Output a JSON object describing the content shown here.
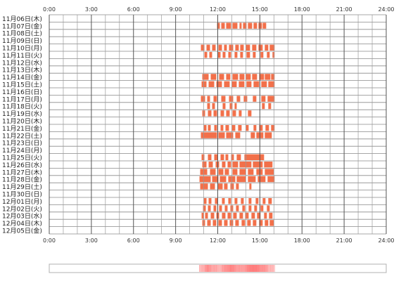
{
  "chart_data": {
    "type": "timeline",
    "x_ticks": [
      "0:00",
      "3:00",
      "6:00",
      "9:00",
      "12:00",
      "15:00",
      "18:00",
      "21:00",
      "24:00"
    ],
    "x_range_hours": [
      0,
      24
    ],
    "bar_color": "#f2704a",
    "rows": [
      {
        "label": "11月06日(木)",
        "segments": []
      },
      {
        "label": "11月07日(金)",
        "segments": [
          [
            11.95,
            12.15
          ],
          [
            12.25,
            12.5
          ],
          [
            12.6,
            12.95
          ],
          [
            13.05,
            13.4
          ],
          [
            13.55,
            13.7
          ],
          [
            13.8,
            14.05
          ],
          [
            14.15,
            14.45
          ],
          [
            14.55,
            14.8
          ],
          [
            14.9,
            15.15
          ],
          [
            15.2,
            15.45
          ]
        ]
      },
      {
        "label": "11月08日(土)",
        "segments": []
      },
      {
        "label": "11月09日(日)",
        "segments": []
      },
      {
        "label": "11月10日(月)",
        "segments": [
          [
            10.8,
            11.05
          ],
          [
            11.2,
            11.45
          ],
          [
            11.6,
            11.85
          ],
          [
            12.05,
            12.3
          ],
          [
            12.45,
            12.65
          ],
          [
            12.8,
            13.1
          ],
          [
            13.25,
            13.5
          ],
          [
            13.6,
            13.85
          ],
          [
            14.0,
            14.3
          ],
          [
            14.45,
            14.75
          ],
          [
            14.9,
            15.2
          ],
          [
            15.35,
            15.6
          ],
          [
            15.7,
            16.05
          ]
        ]
      },
      {
        "label": "11月11日(火)",
        "segments": [
          [
            11.05,
            11.25
          ],
          [
            11.4,
            11.6
          ],
          [
            12.0,
            12.2
          ],
          [
            12.35,
            12.55
          ],
          [
            12.75,
            12.95
          ],
          [
            13.2,
            13.4
          ],
          [
            13.6,
            13.8
          ],
          [
            14.05,
            14.3
          ],
          [
            14.5,
            14.7
          ],
          [
            15.05,
            15.25
          ],
          [
            15.5,
            15.7
          ],
          [
            15.9,
            16.05
          ]
        ]
      },
      {
        "label": "11月12日(水)",
        "segments": []
      },
      {
        "label": "11月13日(木)",
        "segments": []
      },
      {
        "label": "11月14日(金)",
        "segments": [
          [
            10.9,
            11.35
          ],
          [
            11.5,
            11.9
          ],
          [
            12.1,
            12.45
          ],
          [
            12.6,
            12.9
          ],
          [
            13.05,
            13.45
          ],
          [
            13.55,
            13.9
          ],
          [
            14.0,
            14.35
          ],
          [
            14.45,
            14.8
          ],
          [
            14.95,
            15.3
          ],
          [
            15.35,
            15.75
          ],
          [
            15.8,
            16.05
          ]
        ]
      },
      {
        "label": "11月15日(土)",
        "segments": [
          [
            10.85,
            11.2
          ],
          [
            11.35,
            11.75
          ],
          [
            11.9,
            12.3
          ],
          [
            12.45,
            12.85
          ],
          [
            13.0,
            13.35
          ],
          [
            13.5,
            13.9
          ],
          [
            14.05,
            14.4
          ],
          [
            14.55,
            14.95
          ],
          [
            15.1,
            15.5
          ],
          [
            15.6,
            16.05
          ]
        ]
      },
      {
        "label": "11月16日(日)",
        "segments": []
      },
      {
        "label": "11月17日(月)",
        "segments": [
          [
            10.8,
            11.1
          ],
          [
            11.25,
            11.45
          ],
          [
            11.7,
            11.95
          ],
          [
            12.25,
            12.55
          ],
          [
            12.8,
            13.1
          ],
          [
            13.35,
            13.6
          ],
          [
            13.85,
            14.1
          ],
          [
            14.5,
            14.75
          ],
          [
            15.1,
            15.4
          ],
          [
            15.55,
            16.05
          ]
        ]
      },
      {
        "label": "11月18日(火)",
        "segments": [
          [
            11.25,
            11.45
          ],
          [
            11.6,
            11.8
          ],
          [
            12.35,
            12.55
          ],
          [
            12.85,
            13.05
          ],
          [
            13.2,
            13.35
          ],
          [
            15.15,
            15.35
          ],
          [
            15.6,
            15.8
          ]
        ]
      },
      {
        "label": "11月19日(水)",
        "segments": [
          [
            10.9,
            11.1
          ],
          [
            11.3,
            11.55
          ],
          [
            11.7,
            11.95
          ],
          [
            12.2,
            12.45
          ],
          [
            12.6,
            12.85
          ],
          [
            13.05,
            13.3
          ],
          [
            13.5,
            13.7
          ],
          [
            14.15,
            14.4
          ]
        ]
      },
      {
        "label": "11月20日(木)",
        "segments": []
      },
      {
        "label": "11月21日(金)",
        "segments": [
          [
            11.0,
            11.2
          ],
          [
            11.3,
            11.5
          ],
          [
            11.75,
            11.95
          ],
          [
            12.2,
            12.4
          ],
          [
            12.55,
            12.8
          ],
          [
            13.0,
            13.25
          ],
          [
            13.45,
            13.7
          ],
          [
            14.0,
            14.2
          ],
          [
            14.55,
            14.75
          ],
          [
            14.95,
            15.2
          ],
          [
            15.4,
            15.65
          ],
          [
            15.8,
            16.05
          ]
        ]
      },
      {
        "label": "11月22日(土)",
        "segments": [
          [
            10.8,
            11.95
          ],
          [
            12.05,
            12.5
          ],
          [
            12.6,
            13.1
          ],
          [
            13.25,
            13.6
          ],
          [
            14.35,
            14.65
          ],
          [
            14.75,
            15.25
          ],
          [
            15.35,
            15.85
          ]
        ]
      },
      {
        "label": "11月23日(日)",
        "segments": []
      },
      {
        "label": "11月24日(月)",
        "segments": []
      },
      {
        "label": "11月25日(火)",
        "segments": [
          [
            10.85,
            11.05
          ],
          [
            11.3,
            11.55
          ],
          [
            11.75,
            12.0
          ],
          [
            12.2,
            12.45
          ],
          [
            12.55,
            12.75
          ],
          [
            12.95,
            13.15
          ],
          [
            13.35,
            13.65
          ],
          [
            13.9,
            15.3
          ]
        ]
      },
      {
        "label": "11月26日(水)",
        "segments": [
          [
            10.9,
            11.2
          ],
          [
            11.35,
            11.65
          ],
          [
            11.85,
            12.1
          ],
          [
            12.3,
            12.55
          ],
          [
            12.7,
            12.95
          ],
          [
            13.05,
            13.45
          ],
          [
            13.55,
            14.4
          ],
          [
            14.5,
            15.2
          ],
          [
            15.3,
            15.9
          ]
        ]
      },
      {
        "label": "11月27日(木)",
        "segments": [
          [
            10.75,
            11.25
          ],
          [
            11.45,
            11.85
          ],
          [
            12.05,
            12.4
          ],
          [
            12.5,
            12.8
          ],
          [
            13.05,
            13.4
          ],
          [
            13.55,
            14.0
          ],
          [
            14.15,
            14.55
          ],
          [
            14.75,
            15.2
          ],
          [
            15.35,
            16.0
          ]
        ]
      },
      {
        "label": "11月28日(金)",
        "segments": [
          [
            10.7,
            11.5
          ],
          [
            11.6,
            12.05
          ],
          [
            12.15,
            12.6
          ],
          [
            12.75,
            13.25
          ],
          [
            13.35,
            14.0
          ],
          [
            14.15,
            14.7
          ],
          [
            14.85,
            15.4
          ],
          [
            15.55,
            16.05
          ]
        ]
      },
      {
        "label": "11月29日(土)",
        "segments": [
          [
            10.75,
            11.3
          ],
          [
            11.45,
            11.8
          ],
          [
            12.0,
            12.35
          ],
          [
            12.45,
            12.7
          ],
          [
            12.9,
            13.15
          ],
          [
            13.3,
            13.5
          ],
          [
            14.25,
            14.4
          ]
        ]
      },
      {
        "label": "11月30日(日)",
        "segments": []
      },
      {
        "label": "12月01日(月)",
        "segments": [
          [
            11.0,
            11.2
          ],
          [
            11.35,
            11.55
          ],
          [
            11.8,
            12.0
          ],
          [
            12.3,
            12.5
          ],
          [
            12.75,
            12.95
          ],
          [
            13.2,
            13.4
          ],
          [
            13.65,
            13.85
          ],
          [
            14.2,
            14.4
          ],
          [
            14.7,
            14.9
          ],
          [
            15.2,
            15.4
          ],
          [
            15.6,
            15.85
          ]
        ]
      },
      {
        "label": "12月02日(火)",
        "segments": [
          [
            10.95,
            11.15
          ],
          [
            11.3,
            11.5
          ],
          [
            11.7,
            11.9
          ],
          [
            12.1,
            12.3
          ],
          [
            12.5,
            12.7
          ],
          [
            12.9,
            13.1
          ],
          [
            13.3,
            13.5
          ],
          [
            13.75,
            13.95
          ],
          [
            14.2,
            14.4
          ],
          [
            14.6,
            14.8
          ],
          [
            15.05,
            15.25
          ],
          [
            15.5,
            15.7
          ]
        ]
      },
      {
        "label": "12月03日(水)",
        "segments": [
          [
            10.85,
            11.0
          ],
          [
            11.1,
            11.3
          ],
          [
            11.5,
            11.75
          ],
          [
            11.9,
            12.1
          ],
          [
            12.3,
            12.55
          ],
          [
            12.7,
            12.95
          ],
          [
            13.1,
            13.35
          ],
          [
            13.55,
            13.8
          ],
          [
            13.95,
            14.2
          ],
          [
            14.4,
            14.65
          ],
          [
            14.8,
            15.05
          ],
          [
            15.3,
            15.5
          ],
          [
            15.65,
            15.9
          ]
        ]
      },
      {
        "label": "12月04日(木)",
        "segments": [
          [
            10.9,
            11.1
          ],
          [
            11.25,
            11.5
          ],
          [
            11.65,
            11.9
          ],
          [
            12.05,
            12.3
          ],
          [
            12.45,
            12.7
          ],
          [
            12.85,
            13.1
          ],
          [
            13.25,
            13.5
          ],
          [
            13.7,
            13.95
          ],
          [
            14.1,
            14.35
          ],
          [
            14.5,
            14.75
          ],
          [
            14.95,
            15.2
          ],
          [
            15.35,
            15.6
          ],
          [
            15.7,
            16.0
          ]
        ]
      },
      {
        "label": "12月05日(金)",
        "segments": []
      }
    ],
    "summary_strip": {
      "start_hour": 10.7,
      "end_hour": 16.1
    }
  }
}
